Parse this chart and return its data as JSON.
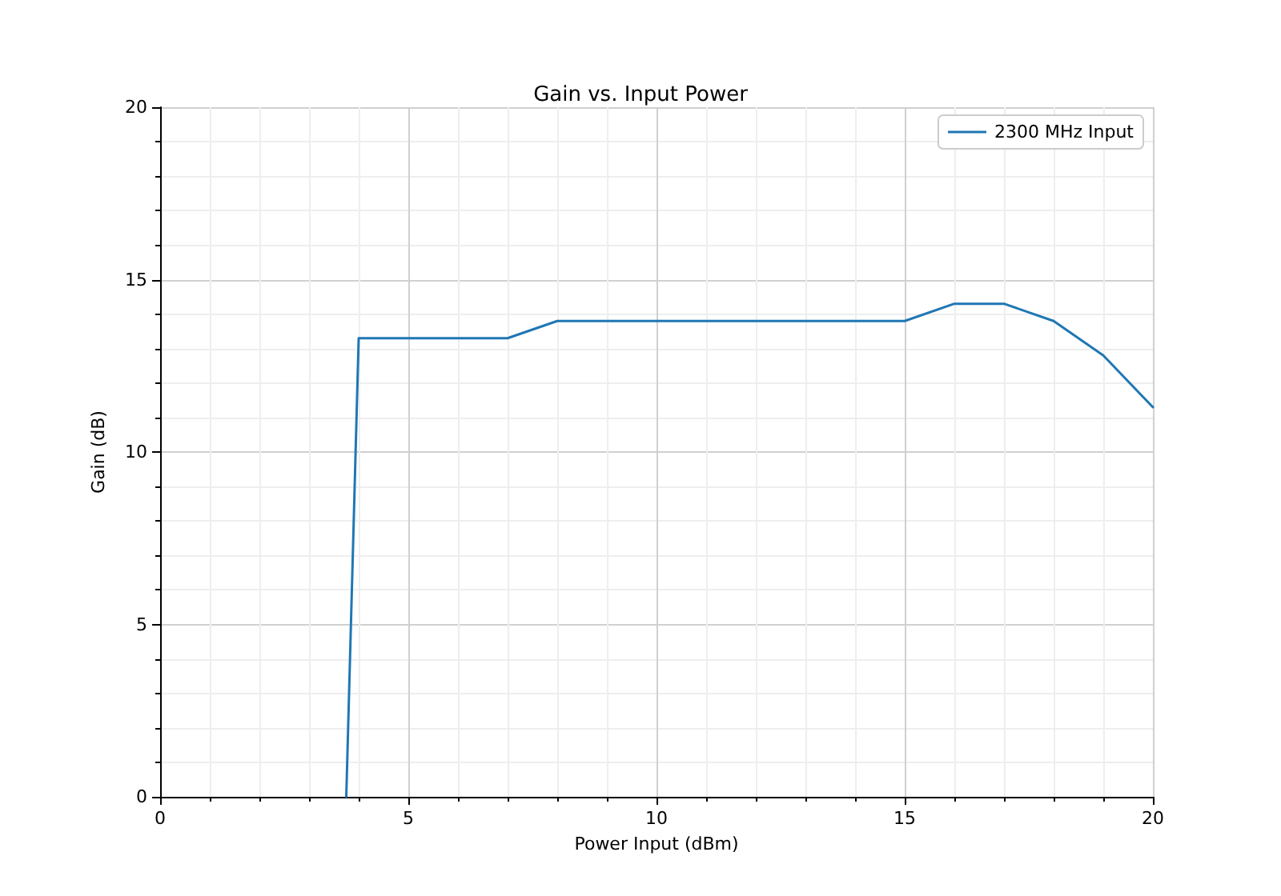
{
  "chart_data": {
    "type": "line",
    "title": "Gain vs. Input Power",
    "xlabel": "Power Input (dBm)",
    "ylabel": "Gain (dB)",
    "x": [
      3.75,
      4,
      5,
      6,
      7,
      8,
      9,
      10,
      11,
      12,
      13,
      14,
      15,
      16,
      17,
      18,
      19,
      20
    ],
    "series": [
      {
        "name": "2300 MHz Input",
        "color": "#1f77b4",
        "values": [
          0,
          13.3,
          13.3,
          13.3,
          13.3,
          13.8,
          13.8,
          13.8,
          13.8,
          13.8,
          13.8,
          13.8,
          13.8,
          14.3,
          14.3,
          13.8,
          12.8,
          11.3
        ]
      }
    ],
    "xlim": [
      0,
      20
    ],
    "xticks": [
      0,
      5,
      10,
      15,
      20
    ],
    "ylim": [
      0,
      20
    ],
    "yticks": [
      0,
      5,
      10,
      15,
      20
    ],
    "grid": true,
    "legend": "top right",
    "marker": "none",
    "line_style": "solid"
  }
}
